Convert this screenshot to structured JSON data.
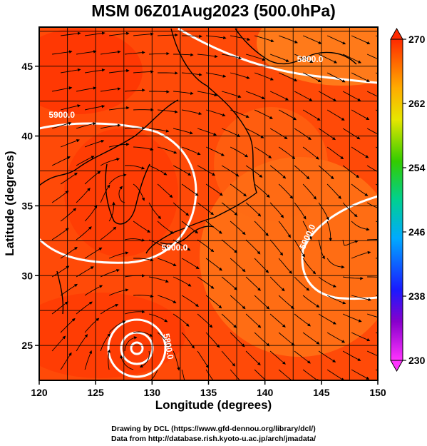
{
  "title": "MSM 06Z01Aug2023 (500.0hPa)",
  "x_axis": {
    "label": "Longitude (degrees)",
    "ticks": [
      {
        "value": 120,
        "label": "120"
      },
      {
        "value": 125,
        "label": "125"
      },
      {
        "value": 130,
        "label": "130"
      },
      {
        "value": 135,
        "label": "135"
      },
      {
        "value": 140,
        "label": "140"
      },
      {
        "value": 145,
        "label": "145"
      },
      {
        "value": 150,
        "label": "150"
      }
    ],
    "range": [
      120,
      150
    ]
  },
  "y_axis": {
    "label": "Latitude (degrees)",
    "ticks": [
      {
        "value": 25,
        "label": "25"
      },
      {
        "value": 30,
        "label": "30"
      },
      {
        "value": 35,
        "label": "35"
      },
      {
        "value": 40,
        "label": "40"
      },
      {
        "value": 45,
        "label": "45"
      }
    ],
    "range": [
      22.5,
      47.8
    ]
  },
  "colorbar": {
    "min": 230,
    "max": 270,
    "tick_labels": [
      "270",
      "262",
      "254",
      "246",
      "238",
      "230"
    ],
    "tick_values": [
      270,
      262,
      254,
      246,
      238,
      230
    ]
  },
  "contour_labels": [
    {
      "text": "5800.0",
      "lon": 144.0,
      "lat": 45.3
    },
    {
      "text": "5900.0",
      "lon": 122.0,
      "lat": 41.3
    },
    {
      "text": "5900.0",
      "lon": 132.0,
      "lat": 31.8
    },
    {
      "text": "5900.0",
      "lon": 144.0,
      "lat": 32.7
    },
    {
      "text": "5800.0",
      "lon": 131.2,
      "lat": 24.9
    }
  ],
  "credits": {
    "line1": "Drawing by DCL (https://www.gfd-dennou.org/library/dcl/)",
    "line2": "Data from http://database.rish.kyoto-u.ac.jp/arch/jmadata/"
  },
  "colors": {
    "warm": "#ff3a00",
    "hot": "#ff5a1a",
    "orange": "#ff8c1a",
    "contour": "#ffffff",
    "frame": "#000000"
  }
}
